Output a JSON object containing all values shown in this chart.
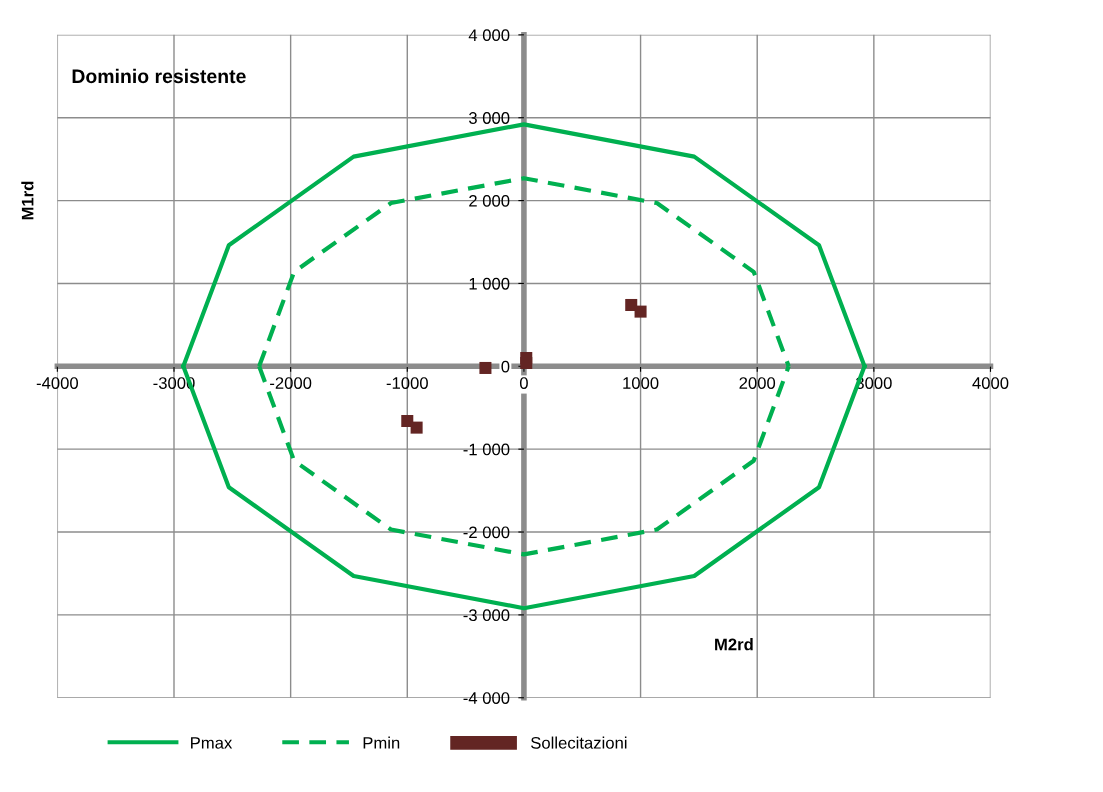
{
  "chart_data": {
    "type": "scatter",
    "title": "Dominio resistente",
    "xlabel": "M2rd",
    "ylabel": "M1rd",
    "xlim": [
      -4000,
      4000
    ],
    "ylim": [
      -4000,
      4000
    ],
    "xticks": [
      -4000,
      -3000,
      -2000,
      -1000,
      0,
      1000,
      2000,
      3000,
      4000
    ],
    "yticks": [
      {
        "value": -4000,
        "label": "-4 000"
      },
      {
        "value": -3000,
        "label": "-3 000"
      },
      {
        "value": -2000,
        "label": "-2 000"
      },
      {
        "value": -1000,
        "label": "-1 000"
      },
      0,
      {
        "value": 1000,
        "label": "1 000"
      },
      {
        "value": 2000,
        "label": "2 000"
      },
      {
        "value": 3000,
        "label": "3 000"
      },
      {
        "value": 4000,
        "label": "4 000"
      }
    ],
    "grid": true,
    "legend": "bottom",
    "series": [
      {
        "name": "Pmax",
        "type": "line",
        "color": "#00b050",
        "line_style": "solid",
        "x": [
          -2920,
          -2530,
          -1460,
          0,
          1460,
          2530,
          2920
        ],
        "values": [
          0,
          1460,
          2530,
          2920,
          2530,
          1460,
          0
        ]
      },
      {
        "type": "line",
        "color": "#00b050",
        "line_style": "solid",
        "x": [
          -2920,
          -2530,
          -1460,
          0,
          1460,
          2530,
          2920
        ],
        "values": [
          0,
          -1460,
          -2530,
          -2920,
          -2530,
          -1460,
          0
        ]
      },
      {
        "name": "Pmin",
        "type": "line",
        "color": "#00b050",
        "line_style": "dashed",
        "x": [
          -2270,
          -1970,
          -1140,
          0,
          1140,
          1970,
          2270
        ],
        "values": [
          0,
          1140,
          1970,
          2270,
          1970,
          1140,
          0
        ]
      },
      {
        "type": "line",
        "color": "#00b050",
        "line_style": "dashed",
        "x": [
          -2270,
          -1970,
          -1140,
          0,
          1140,
          1970,
          2270
        ],
        "values": [
          0,
          -1140,
          -1970,
          -2270,
          -1970,
          -1140,
          0
        ]
      },
      {
        "name": "Sollecitazioni",
        "color": "#632523",
        "marker": "square",
        "x": [
          920,
          1000,
          20,
          20,
          -330,
          -1000,
          -920
        ],
        "values": [
          740,
          660,
          100,
          40,
          -20,
          -660,
          -740
        ]
      }
    ]
  }
}
